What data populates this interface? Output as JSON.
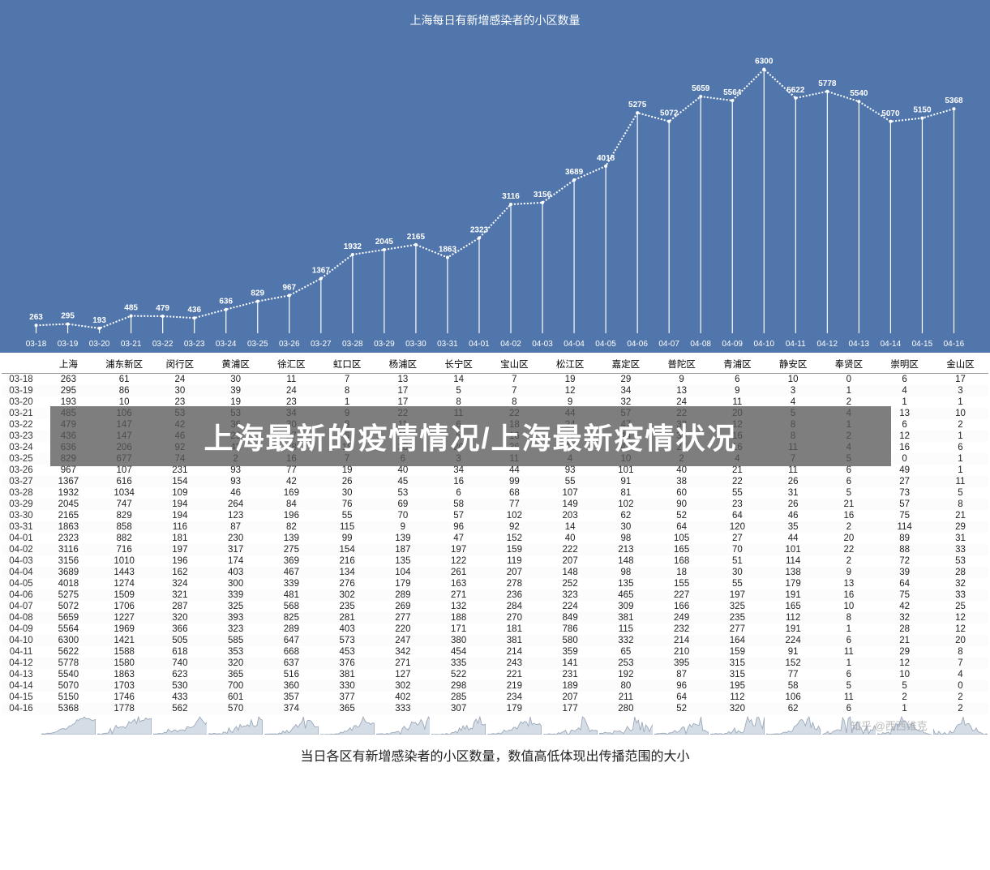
{
  "chart": {
    "title": "上海每日有新增感染者的小区数量",
    "type": "line-with-drop-lines",
    "background_color": "#5176ac",
    "line_color": "#ffffff",
    "text_color": "#ffffff",
    "label_fontsize": 10,
    "title_fontsize": 14,
    "ylim": [
      0,
      6500
    ],
    "dates": [
      "03-18",
      "03-19",
      "03-20",
      "03-21",
      "03-22",
      "03-23",
      "03-24",
      "03-25",
      "03-26",
      "03-27",
      "03-28",
      "03-29",
      "03-30",
      "03-31",
      "04-01",
      "04-02",
      "04-03",
      "04-04",
      "04-05",
      "04-06",
      "04-07",
      "04-08",
      "04-09",
      "04-10",
      "04-11",
      "04-12",
      "04-13",
      "04-14",
      "04-15",
      "04-16"
    ],
    "values": [
      263,
      295,
      193,
      485,
      479,
      436,
      636,
      829,
      967,
      1367,
      1932,
      2045,
      2165,
      1863,
      2323,
      3116,
      3156,
      3689,
      4018,
      5275,
      5072,
      5659,
      5564,
      6300,
      5622,
      5778,
      5540,
      5070,
      5150,
      5368
    ],
    "line_width": 2,
    "point_radius": 2,
    "dash_pattern": "2,2"
  },
  "table": {
    "columns": [
      "",
      "上海",
      "浦东新区",
      "闵行区",
      "黄浦区",
      "徐汇区",
      "虹口区",
      "杨浦区",
      "长宁区",
      "宝山区",
      "松江区",
      "嘉定区",
      "普陀区",
      "青浦区",
      "静安区",
      "奉贤区",
      "崇明区",
      "金山区"
    ],
    "dates": [
      "03-18",
      "03-19",
      "03-20",
      "03-21",
      "03-22",
      "03-23",
      "03-24",
      "03-25",
      "03-26",
      "03-27",
      "03-28",
      "03-29",
      "03-30",
      "03-31",
      "04-01",
      "04-02",
      "04-03",
      "04-04",
      "04-05",
      "04-06",
      "04-07",
      "04-08",
      "04-09",
      "04-10",
      "04-11",
      "04-12",
      "04-13",
      "04-14",
      "04-15",
      "04-16"
    ],
    "rows": [
      [
        263,
        61,
        24,
        30,
        11,
        7,
        13,
        14,
        7,
        19,
        29,
        9,
        6,
        10,
        0,
        6,
        17
      ],
      [
        295,
        86,
        30,
        39,
        24,
        8,
        17,
        5,
        7,
        12,
        34,
        13,
        9,
        3,
        1,
        4,
        3
      ],
      [
        193,
        10,
        23,
        19,
        23,
        1,
        17,
        8,
        8,
        9,
        32,
        24,
        11,
        4,
        2,
        1,
        1
      ],
      [
        485,
        106,
        53,
        53,
        34,
        9,
        22,
        11,
        22,
        44,
        57,
        22,
        20,
        5,
        4,
        13,
        10
      ],
      [
        479,
        147,
        42,
        36,
        30,
        8,
        11,
        6,
        18,
        24,
        47,
        32,
        12,
        8,
        1,
        6,
        2
      ],
      [
        436,
        147,
        46,
        29,
        27,
        6,
        12,
        5,
        16,
        19,
        44,
        30,
        16,
        8,
        2,
        12,
        1
      ],
      [
        636,
        206,
        92,
        42,
        38,
        18,
        28,
        20,
        36,
        35,
        48,
        27,
        16,
        11,
        4,
        16,
        6
      ],
      [
        829,
        677,
        74,
        2,
        16,
        7,
        6,
        3,
        11,
        4,
        10,
        2,
        4,
        7,
        5,
        0,
        1
      ],
      [
        967,
        107,
        231,
        93,
        77,
        19,
        40,
        34,
        44,
        93,
        101,
        40,
        21,
        11,
        6,
        49,
        1
      ],
      [
        1367,
        616,
        154,
        93,
        42,
        26,
        45,
        16,
        99,
        55,
        91,
        38,
        22,
        26,
        6,
        27,
        11
      ],
      [
        1932,
        1034,
        109,
        46,
        169,
        30,
        53,
        6,
        68,
        107,
        81,
        60,
        55,
        31,
        5,
        73,
        5
      ],
      [
        2045,
        747,
        194,
        264,
        84,
        76,
        69,
        58,
        77,
        149,
        102,
        90,
        23,
        26,
        21,
        57,
        8
      ],
      [
        2165,
        829,
        194,
        123,
        196,
        55,
        70,
        57,
        102,
        203,
        62,
        52,
        64,
        46,
        16,
        75,
        21
      ],
      [
        1863,
        858,
        116,
        87,
        82,
        115,
        9,
        96,
        92,
        14,
        30,
        64,
        120,
        35,
        2,
        114,
        29
      ],
      [
        2323,
        882,
        181,
        230,
        139,
        99,
        139,
        47,
        152,
        40,
        98,
        105,
        27,
        44,
        20,
        89,
        31
      ],
      [
        3116,
        716,
        197,
        317,
        275,
        154,
        187,
        197,
        159,
        222,
        213,
        165,
        70,
        101,
        22,
        88,
        33
      ],
      [
        3156,
        1010,
        196,
        174,
        369,
        216,
        135,
        122,
        119,
        207,
        148,
        168,
        51,
        114,
        2,
        72,
        53
      ],
      [
        3689,
        1443,
        162,
        403,
        467,
        134,
        104,
        261,
        207,
        148,
        98,
        18,
        30,
        138,
        9,
        39,
        28
      ],
      [
        4018,
        1274,
        324,
        300,
        339,
        276,
        179,
        163,
        278,
        252,
        135,
        155,
        55,
        179,
        13,
        64,
        32
      ],
      [
        5275,
        1509,
        321,
        339,
        481,
        302,
        289,
        271,
        236,
        323,
        465,
        227,
        197,
        191,
        16,
        75,
        33
      ],
      [
        5072,
        1706,
        287,
        325,
        568,
        235,
        269,
        132,
        284,
        224,
        309,
        166,
        325,
        165,
        10,
        42,
        25
      ],
      [
        5659,
        1227,
        320,
        393,
        825,
        281,
        277,
        188,
        270,
        849,
        381,
        249,
        235,
        112,
        8,
        32,
        12
      ],
      [
        5564,
        1969,
        366,
        323,
        289,
        403,
        220,
        171,
        181,
        786,
        115,
        232,
        277,
        191,
        1,
        28,
        12
      ],
      [
        6300,
        1421,
        505,
        585,
        647,
        573,
        247,
        380,
        381,
        580,
        332,
        214,
        164,
        224,
        6,
        21,
        20
      ],
      [
        5622,
        1588,
        618,
        353,
        668,
        453,
        342,
        454,
        214,
        359,
        65,
        210,
        159,
        91,
        11,
        29,
        8
      ],
      [
        5778,
        1580,
        740,
        320,
        637,
        376,
        271,
        335,
        243,
        141,
        253,
        395,
        315,
        152,
        1,
        12,
        7
      ],
      [
        5540,
        1863,
        623,
        365,
        516,
        381,
        127,
        522,
        221,
        231,
        192,
        87,
        315,
        77,
        6,
        10,
        4
      ],
      [
        5070,
        1703,
        530,
        700,
        360,
        330,
        302,
        298,
        219,
        189,
        80,
        96,
        195,
        58,
        5,
        5,
        0
      ],
      [
        5150,
        1746,
        433,
        601,
        357,
        377,
        402,
        285,
        234,
        207,
        211,
        64,
        112,
        106,
        11,
        2,
        2
      ],
      [
        5368,
        1778,
        562,
        570,
        374,
        365,
        333,
        307,
        179,
        177,
        280,
        52,
        320,
        62,
        6,
        1,
        2
      ]
    ]
  },
  "overlay": {
    "text": "上海最新的疫情情况/上海最新疫情状况",
    "bg_color": "rgba(90,90,90,0.78)",
    "font_color": "#ffffff",
    "fontsize": 36,
    "row_start_index": 3,
    "row_end_index": 7
  },
  "caption": "当日各区有新增感染者的小区数量，数值高低体现出传播范围的大小",
  "watermark": "知乎 @西西维克",
  "sparklines": {
    "stroke": "#9aa7b8",
    "fill": "#d4dce6"
  }
}
